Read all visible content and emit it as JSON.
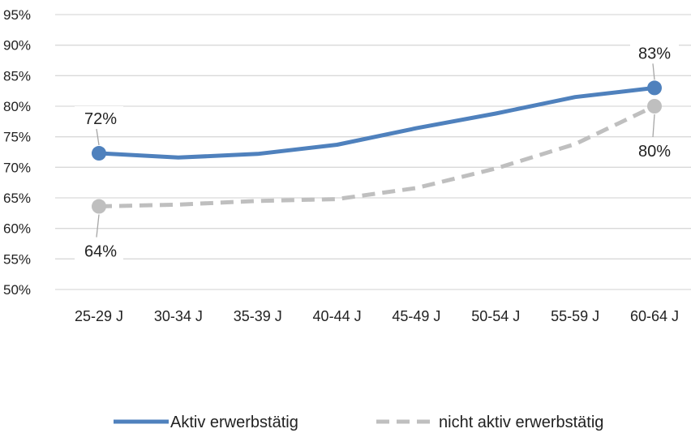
{
  "chart_data": {
    "type": "line",
    "categories": [
      "25-29 J",
      "30-34 J",
      "35-39 J",
      "40-44 J",
      "45-49 J",
      "50-54 J",
      "55-59 J",
      "60-64 J"
    ],
    "series": [
      {
        "name": "Aktiv erwerbstätig",
        "values": [
          72.3,
          71.6,
          72.2,
          73.7,
          76.4,
          78.8,
          81.5,
          83.0
        ],
        "color": "#4f81bd",
        "style": "solid",
        "labels": [
          {
            "index": 0,
            "text": "72%",
            "position": "above"
          },
          {
            "index": 7,
            "text": "83%",
            "position": "above"
          }
        ]
      },
      {
        "name": "nicht aktiv erwerbstätig",
        "values": [
          63.6,
          63.9,
          64.5,
          64.8,
          66.6,
          69.8,
          73.8,
          80.0
        ],
        "color": "#bfbfbf",
        "style": "dashed",
        "labels": [
          {
            "index": 0,
            "text": "64%",
            "position": "below"
          },
          {
            "index": 7,
            "text": "80%",
            "position": "below"
          }
        ]
      }
    ],
    "yticks": [
      "50%",
      "55%",
      "60%",
      "65%",
      "70%",
      "75%",
      "80%",
      "85%",
      "90%",
      "95%"
    ],
    "ylim": [
      50,
      95
    ],
    "grid": true,
    "legend_position": "bottom"
  }
}
